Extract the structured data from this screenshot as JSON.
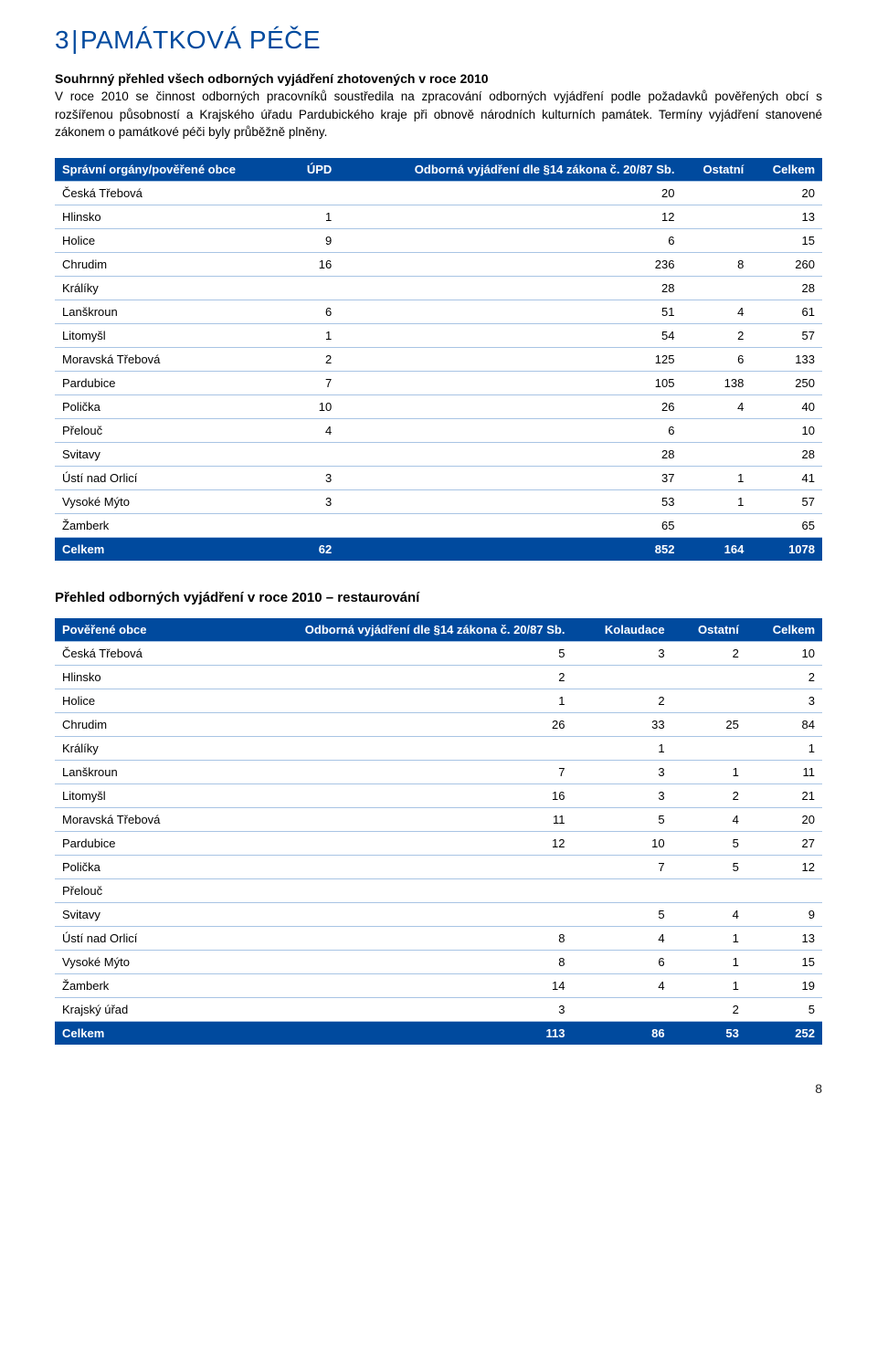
{
  "heading": {
    "number": "3",
    "separator": "|",
    "title": "PAMÁTKOVÁ PÉČE",
    "color": "#004a9e",
    "fontsize": 28
  },
  "summary": {
    "title": "Souhrnný přehled všech odborných vyjádření zhotovených v roce 2010",
    "body": "V roce 2010 se činnost odborných pracovníků soustředila na zpracování odborných vyjádření podle požadavků pověřených obcí s rozšířenou působností a Krajského úřadu Pardubického kraje při obnově národních kulturních památek. Termíny vyjádření stanovené zákonem o památkové péči byly průběžně plněny."
  },
  "table1": {
    "header_bg": "#004a9e",
    "header_fg": "#ffffff",
    "row_border": "#a8c4e4",
    "columns": [
      "Správní orgány/pověřené obce",
      "ÚPD",
      "Odborná vyjádření dle §14 zákona č. 20/87 Sb.",
      "Ostatní",
      "Celkem"
    ],
    "col_align": [
      "left",
      "right",
      "right",
      "right",
      "right"
    ],
    "rows": [
      [
        "Česká Třebová",
        "",
        "20",
        "",
        "20"
      ],
      [
        "Hlinsko",
        "1",
        "12",
        "",
        "13"
      ],
      [
        "Holice",
        "9",
        "6",
        "",
        "15"
      ],
      [
        "Chrudim",
        "16",
        "236",
        "8",
        "260"
      ],
      [
        "Králíky",
        "",
        "28",
        "",
        "28"
      ],
      [
        "Lanškroun",
        "6",
        "51",
        "4",
        "61"
      ],
      [
        "Litomyšl",
        "1",
        "54",
        "2",
        "57"
      ],
      [
        "Moravská Třebová",
        "2",
        "125",
        "6",
        "133"
      ],
      [
        "Pardubice",
        "7",
        "105",
        "138",
        "250"
      ],
      [
        "Polička",
        "10",
        "26",
        "4",
        "40"
      ],
      [
        "Přelouč",
        "4",
        "6",
        "",
        "10"
      ],
      [
        "Svitavy",
        "",
        "28",
        "",
        "28"
      ],
      [
        "Ústí nad Orlicí",
        "3",
        "37",
        "1",
        "41"
      ],
      [
        "Vysoké Mýto",
        "3",
        "53",
        "1",
        "57"
      ],
      [
        "Žamberk",
        "",
        "65",
        "",
        "65"
      ]
    ],
    "total_row": [
      "Celkem",
      "62",
      "852",
      "164",
      "1078"
    ]
  },
  "section2_title": "Přehled odborných vyjádření v roce 2010 – restaurování",
  "table2": {
    "header_bg": "#004a9e",
    "header_fg": "#ffffff",
    "row_border": "#a8c4e4",
    "columns": [
      "Pověřené obce",
      "Odborná vyjádření dle §14 zákona č. 20/87 Sb.",
      "Kolaudace",
      "Ostatní",
      "Celkem"
    ],
    "col_align": [
      "left",
      "right",
      "right",
      "right",
      "right"
    ],
    "rows": [
      [
        "Česká Třebová",
        "5",
        "3",
        "2",
        "10"
      ],
      [
        "Hlinsko",
        "2",
        "",
        "",
        "2"
      ],
      [
        "Holice",
        "1",
        "2",
        "",
        "3"
      ],
      [
        "Chrudim",
        "26",
        "33",
        "25",
        "84"
      ],
      [
        "Králíky",
        "",
        "1",
        "",
        "1"
      ],
      [
        "Lanškroun",
        "7",
        "3",
        "1",
        "11"
      ],
      [
        "Litomyšl",
        "16",
        "3",
        "2",
        "21"
      ],
      [
        "Moravská Třebová",
        "11",
        "5",
        "4",
        "20"
      ],
      [
        "Pardubice",
        "12",
        "10",
        "5",
        "27"
      ],
      [
        "Polička",
        "",
        "7",
        "5",
        "12"
      ],
      [
        "Přelouč",
        "",
        "",
        "",
        ""
      ],
      [
        "Svitavy",
        "",
        "5",
        "4",
        "9"
      ],
      [
        "Ústí nad Orlicí",
        "8",
        "4",
        "1",
        "13"
      ],
      [
        "Vysoké Mýto",
        "8",
        "6",
        "1",
        "15"
      ],
      [
        "Žamberk",
        "14",
        "4",
        "1",
        "19"
      ],
      [
        "Krajský úřad",
        "3",
        "",
        "2",
        "5"
      ]
    ],
    "total_row": [
      "Celkem",
      "113",
      "86",
      "53",
      "252"
    ]
  },
  "page_number": "8"
}
